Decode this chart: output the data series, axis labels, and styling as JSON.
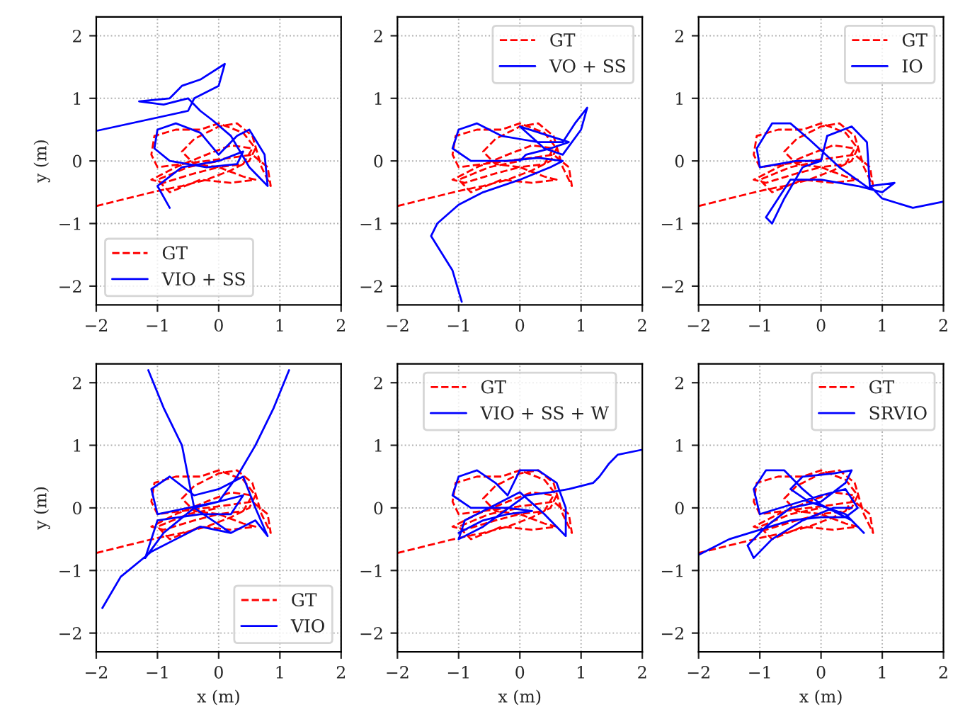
{
  "chart_data": [
    {
      "type": "line",
      "ylabel": "y (m)",
      "xlim": [
        -2,
        2
      ],
      "ylim": [
        -2.3,
        2.3
      ],
      "xticks": [
        -2,
        -1,
        0,
        1,
        2
      ],
      "yticks": [
        -2,
        -1,
        0,
        1,
        2
      ],
      "grid": true,
      "legend": "bottom left",
      "series": [
        {
          "name": "GT",
          "color": "#ff0000",
          "line_style": "dashed",
          "x": [
            -2,
            -1.5,
            -1.0,
            -0.6,
            -0.2,
            0.2,
            0.5,
            0.6,
            0.4,
            0.0,
            -0.3,
            -0.7,
            -1.05,
            -1.1,
            -1.0,
            -0.6,
            -0.2,
            0.2,
            0.55,
            0.8,
            0.85,
            0.7,
            0.55,
            0.3,
            0.0,
            -0.4,
            -0.6,
            -0.4,
            0.0,
            0.4,
            0.55,
            0.2,
            -0.2,
            -0.7,
            -1.1,
            -0.9,
            -0.4,
            0.0,
            0.4,
            0.6,
            0.2,
            -0.3,
            -0.8,
            -1.0,
            -0.5,
            0.0
          ],
          "values": [
            -0.72,
            -0.6,
            -0.48,
            -0.4,
            -0.3,
            -0.15,
            0.0,
            0.2,
            0.45,
            0.6,
            0.5,
            0.5,
            0.4,
            0.1,
            -0.1,
            -0.05,
            0.0,
            0.05,
            0.1,
            -0.1,
            -0.4,
            -0.1,
            0.4,
            0.6,
            0.55,
            0.35,
            0.15,
            -0.05,
            -0.1,
            -0.05,
            0.2,
            0.25,
            0.1,
            -0.1,
            -0.3,
            -0.35,
            -0.2,
            -0.1,
            -0.25,
            -0.3,
            -0.35,
            -0.3,
            -0.5,
            -0.3,
            -0.1,
            0.0
          ]
        },
        {
          "name": "VIO + SS",
          "color": "#0000ff",
          "line_style": "solid",
          "x": [
            -0.8,
            -1.0,
            -0.6,
            0.0,
            0.4,
            0.3,
            -0.2,
            -0.8,
            -1.05,
            -1.0,
            -0.7,
            -0.3,
            0.0,
            0.3,
            0.5,
            0.75,
            0.8,
            0.5,
            0.2,
            -0.1,
            -0.3,
            -0.5,
            -0.9,
            -1.3,
            -0.8,
            -0.6,
            -0.3,
            0.1,
            0.0,
            -0.4,
            -0.5,
            -2.0
          ],
          "values": [
            -0.75,
            -0.4,
            -0.1,
            0.0,
            0.15,
            -0.05,
            -0.1,
            0.0,
            0.2,
            0.5,
            0.6,
            0.45,
            0.1,
            0.4,
            0.5,
            0.1,
            -0.4,
            -0.1,
            0.4,
            0.65,
            0.8,
            1.0,
            0.9,
            0.95,
            1.0,
            1.2,
            1.3,
            1.55,
            1.2,
            1.0,
            0.8,
            0.48
          ]
        }
      ]
    },
    {
      "type": "line",
      "xlim": [
        -2,
        2
      ],
      "ylim": [
        -2.3,
        2.3
      ],
      "xticks": [
        -2,
        -1,
        0,
        1,
        2
      ],
      "yticks": [
        -2,
        -1,
        0,
        1,
        2
      ],
      "grid": true,
      "legend": "top right",
      "series": [
        {
          "name": "GT",
          "color": "#ff0000",
          "line_style": "dashed",
          "x": [
            -2,
            -1.5,
            -1.0,
            -0.6,
            -0.2,
            0.2,
            0.5,
            0.6,
            0.4,
            0.0,
            -0.3,
            -0.7,
            -1.05,
            -1.1,
            -1.0,
            -0.6,
            -0.2,
            0.2,
            0.55,
            0.8,
            0.85,
            0.7,
            0.55,
            0.3,
            0.0,
            -0.4,
            -0.6,
            -0.4,
            0.0,
            0.4,
            0.55,
            0.2,
            -0.2,
            -0.7,
            -1.1,
            -0.9,
            -0.4,
            0.0,
            0.4,
            0.6,
            0.2,
            -0.3,
            -0.8,
            -1.0,
            -0.5,
            0.0
          ],
          "values": [
            -0.72,
            -0.6,
            -0.48,
            -0.4,
            -0.3,
            -0.15,
            0.0,
            0.2,
            0.45,
            0.6,
            0.5,
            0.5,
            0.4,
            0.1,
            -0.1,
            -0.05,
            0.0,
            0.05,
            0.1,
            -0.1,
            -0.4,
            -0.1,
            0.4,
            0.6,
            0.55,
            0.35,
            0.15,
            -0.05,
            -0.1,
            -0.05,
            0.2,
            0.25,
            0.1,
            -0.1,
            -0.3,
            -0.35,
            -0.2,
            -0.1,
            -0.25,
            -0.3,
            -0.35,
            -0.3,
            -0.5,
            -0.3,
            -0.1,
            0.0
          ]
        },
        {
          "name": "VO + SS",
          "color": "#0000ff",
          "line_style": "solid",
          "x": [
            -0.95,
            -1.1,
            -1.45,
            -1.35,
            -1.0,
            -0.6,
            0.0,
            0.5,
            0.7,
            0.3,
            -0.2,
            -0.8,
            -1.1,
            -1.0,
            -0.7,
            -0.3,
            0.0,
            0.3,
            0.7,
            0.9,
            1.1,
            1.0,
            0.7,
            0.4,
            0.0,
            0.8,
            0.5,
            0.1,
            0.0
          ],
          "values": [
            -2.25,
            -1.75,
            -1.2,
            -1.0,
            -0.7,
            -0.5,
            -0.3,
            -0.1,
            0.0,
            0.05,
            0.0,
            0.0,
            0.2,
            0.5,
            0.6,
            0.4,
            0.35,
            0.3,
            0.3,
            0.6,
            0.85,
            0.5,
            0.1,
            0.2,
            0.55,
            0.3,
            0.2,
            0.1,
            0.0
          ]
        }
      ]
    },
    {
      "type": "line",
      "xlim": [
        -2,
        2
      ],
      "ylim": [
        -2.3,
        2.3
      ],
      "xticks": [
        -2,
        -1,
        0,
        1,
        2
      ],
      "yticks": [
        -2,
        -1,
        0,
        1,
        2
      ],
      "grid": true,
      "legend": "top right",
      "series": [
        {
          "name": "GT",
          "color": "#ff0000",
          "line_style": "dashed",
          "x": [
            -2,
            -1.5,
            -1.0,
            -0.6,
            -0.2,
            0.2,
            0.5,
            0.6,
            0.4,
            0.0,
            -0.3,
            -0.7,
            -1.05,
            -1.1,
            -1.0,
            -0.6,
            -0.2,
            0.2,
            0.55,
            0.8,
            0.85,
            0.7,
            0.55,
            0.3,
            0.0,
            -0.4,
            -0.6,
            -0.4,
            0.0,
            0.4,
            0.55,
            0.2,
            -0.2,
            -0.7,
            -1.1,
            -0.9,
            -0.4,
            0.0,
            0.4,
            0.6,
            0.2,
            -0.3,
            -0.8,
            -1.0,
            -0.5,
            0.0
          ],
          "values": [
            -0.72,
            -0.6,
            -0.48,
            -0.4,
            -0.3,
            -0.15,
            0.0,
            0.2,
            0.45,
            0.6,
            0.5,
            0.5,
            0.4,
            0.1,
            -0.1,
            -0.05,
            0.0,
            0.05,
            0.1,
            -0.1,
            -0.4,
            -0.1,
            0.4,
            0.6,
            0.55,
            0.35,
            0.15,
            -0.05,
            -0.1,
            -0.05,
            0.2,
            0.25,
            0.1,
            -0.1,
            -0.3,
            -0.35,
            -0.2,
            -0.1,
            -0.25,
            -0.3,
            -0.35,
            -0.3,
            -0.5,
            -0.3,
            -0.1,
            0.0
          ]
        },
        {
          "name": "IO",
          "color": "#0000ff",
          "line_style": "solid",
          "x": [
            2.0,
            1.5,
            1.0,
            0.8,
            1.2,
            1.0,
            0.6,
            0.0,
            -0.5,
            -0.9,
            -0.8,
            -0.6,
            -0.3,
            0.0,
            -0.4,
            -0.7,
            -1.0,
            -1.05,
            -0.8,
            -0.5,
            -0.2,
            0.3,
            0.8,
            0.75,
            0.5,
            0.1,
            0.0
          ],
          "values": [
            -0.65,
            -0.75,
            -0.6,
            -0.4,
            -0.35,
            -0.5,
            -0.4,
            -0.3,
            -0.3,
            -0.9,
            -1.0,
            -0.6,
            -0.1,
            0.0,
            0.0,
            -0.05,
            -0.1,
            0.2,
            0.6,
            0.6,
            0.35,
            -0.1,
            -0.45,
            0.3,
            0.55,
            0.4,
            0.0
          ]
        }
      ]
    },
    {
      "type": "line",
      "xlabel": "x (m)",
      "ylabel": "y (m)",
      "xlim": [
        -2,
        2
      ],
      "ylim": [
        -2.3,
        2.3
      ],
      "xticks": [
        -2,
        -1,
        0,
        1,
        2
      ],
      "yticks": [
        -2,
        -1,
        0,
        1,
        2
      ],
      "grid": true,
      "legend": "bottom right",
      "series": [
        {
          "name": "GT",
          "color": "#ff0000",
          "line_style": "dashed",
          "x": [
            -2,
            -1.5,
            -1.0,
            -0.6,
            -0.2,
            0.2,
            0.5,
            0.6,
            0.4,
            0.0,
            -0.3,
            -0.7,
            -1.05,
            -1.1,
            -1.0,
            -0.6,
            -0.2,
            0.2,
            0.55,
            0.8,
            0.85,
            0.7,
            0.55,
            0.3,
            0.0,
            -0.4,
            -0.6,
            -0.4,
            0.0,
            0.4,
            0.55,
            0.2,
            -0.2,
            -0.7,
            -1.1,
            -0.9,
            -0.4,
            0.0,
            0.4,
            0.6,
            0.2,
            -0.3,
            -0.8,
            -1.0,
            -0.5,
            0.0
          ],
          "values": [
            -0.72,
            -0.6,
            -0.48,
            -0.4,
            -0.3,
            -0.15,
            0.0,
            0.2,
            0.45,
            0.6,
            0.5,
            0.5,
            0.4,
            0.1,
            -0.1,
            -0.05,
            0.0,
            0.05,
            0.1,
            -0.1,
            -0.4,
            -0.1,
            0.4,
            0.6,
            0.55,
            0.35,
            0.15,
            -0.05,
            -0.1,
            -0.05,
            0.2,
            0.25,
            0.1,
            -0.1,
            -0.3,
            -0.35,
            -0.2,
            -0.1,
            -0.25,
            -0.3,
            -0.35,
            -0.3,
            -0.5,
            -0.3,
            -0.1,
            0.0
          ]
        },
        {
          "name": "VIO",
          "color": "#0000ff",
          "line_style": "solid",
          "x": [
            -1.15,
            -0.9,
            -0.6,
            -0.5,
            -0.4,
            0.0,
            0.4,
            0.2,
            -0.3,
            -1.0,
            -1.2,
            -0.9,
            -0.4,
            0.2,
            0.6,
            0.8,
            0.6,
            0.4,
            0.0,
            -0.4,
            -0.8,
            -1.1,
            -1.0,
            -0.5,
            0.0,
            0.3,
            0.6,
            0.9,
            1.15,
            null,
            -1.9,
            -1.6,
            -1.1,
            -0.7,
            -0.3,
            0.2
          ],
          "values": [
            2.2,
            1.6,
            1.0,
            0.5,
            0.0,
            0.1,
            0.2,
            -0.1,
            -0.1,
            -0.2,
            -0.8,
            -0.4,
            0.0,
            -0.4,
            -0.2,
            -0.45,
            0.0,
            0.5,
            0.3,
            0.2,
            0.5,
            0.3,
            -0.1,
            0.0,
            0.1,
            0.5,
            1.0,
            1.6,
            2.2,
            null,
            -1.6,
            -1.1,
            -0.7,
            -0.5,
            -0.3,
            -0.4
          ]
        }
      ]
    },
    {
      "type": "line",
      "xlabel": "x (m)",
      "xlim": [
        -2,
        2
      ],
      "ylim": [
        -2.3,
        2.3
      ],
      "xticks": [
        -2,
        -1,
        0,
        1,
        2
      ],
      "yticks": [
        -2,
        -1,
        0,
        1,
        2
      ],
      "grid": true,
      "legend": "top",
      "series": [
        {
          "name": "GT",
          "color": "#ff0000",
          "line_style": "dashed",
          "x": [
            -2,
            -1.5,
            -1.0,
            -0.6,
            -0.2,
            0.2,
            0.5,
            0.6,
            0.4,
            0.0,
            -0.3,
            -0.7,
            -1.05,
            -1.1,
            -1.0,
            -0.6,
            -0.2,
            0.2,
            0.55,
            0.8,
            0.85,
            0.7,
            0.55,
            0.3,
            0.0,
            -0.4,
            -0.6,
            -0.4,
            0.0,
            0.4,
            0.55,
            0.2,
            -0.2,
            -0.7,
            -1.1,
            -0.9,
            -0.4,
            0.0,
            0.4,
            0.6,
            0.2,
            -0.3,
            -0.8,
            -1.0,
            -0.5,
            0.0
          ],
          "values": [
            -0.72,
            -0.6,
            -0.48,
            -0.4,
            -0.3,
            -0.15,
            0.0,
            0.2,
            0.45,
            0.6,
            0.5,
            0.5,
            0.4,
            0.1,
            -0.1,
            -0.05,
            0.0,
            0.05,
            0.1,
            -0.1,
            -0.4,
            -0.1,
            0.4,
            0.6,
            0.55,
            0.35,
            0.15,
            -0.05,
            -0.1,
            -0.05,
            0.2,
            0.25,
            0.1,
            -0.1,
            -0.3,
            -0.35,
            -0.2,
            -0.1,
            -0.25,
            -0.3,
            -0.35,
            -0.3,
            -0.5,
            -0.3,
            -0.1,
            0.0
          ]
        },
        {
          "name": "VIO + SS + W",
          "color": "#0000ff",
          "line_style": "solid",
          "x": [
            -1.0,
            -0.6,
            -0.2,
            0.2,
            -0.2,
            -0.8,
            -1.1,
            -1.0,
            -0.7,
            -0.4,
            -0.2,
            0.0,
            0.3,
            0.6,
            0.75,
            0.75,
            0.4,
            0.0,
            -0.5,
            -0.9,
            -1.0,
            -0.6,
            0.1,
            0.5,
            0.8,
            1.2,
            1.3,
            1.45,
            1.6,
            2.0
          ],
          "values": [
            -0.4,
            -0.2,
            -0.1,
            -0.05,
            0.0,
            0.0,
            0.2,
            0.5,
            0.6,
            0.4,
            0.2,
            0.6,
            0.6,
            0.4,
            0.0,
            -0.45,
            -0.1,
            0.25,
            0.0,
            -0.2,
            -0.5,
            -0.3,
            0.2,
            0.25,
            0.3,
            0.4,
            0.5,
            0.7,
            0.85,
            0.93
          ]
        }
      ]
    },
    {
      "type": "line",
      "xlabel": "x (m)",
      "xlim": [
        -2,
        2
      ],
      "ylim": [
        -2.3,
        2.3
      ],
      "xticks": [
        -2,
        -1,
        0,
        1,
        2
      ],
      "yticks": [
        -2,
        -1,
        0,
        1,
        2
      ],
      "grid": true,
      "legend": "top right",
      "series": [
        {
          "name": "GT",
          "color": "#ff0000",
          "line_style": "dashed",
          "x": [
            -2,
            -1.5,
            -1.0,
            -0.6,
            -0.2,
            0.2,
            0.5,
            0.6,
            0.4,
            0.0,
            -0.3,
            -0.7,
            -1.05,
            -1.1,
            -1.0,
            -0.6,
            -0.2,
            0.2,
            0.55,
            0.8,
            0.85,
            0.7,
            0.55,
            0.3,
            0.0,
            -0.4,
            -0.6,
            -0.4,
            0.0,
            0.4,
            0.55,
            0.2,
            -0.2,
            -0.7,
            -1.1,
            -0.9,
            -0.4,
            0.0,
            0.4,
            0.6,
            0.2,
            -0.3,
            -0.8,
            -1.0,
            -0.5,
            0.0
          ],
          "values": [
            -0.72,
            -0.6,
            -0.48,
            -0.4,
            -0.3,
            -0.15,
            0.0,
            0.2,
            0.45,
            0.6,
            0.5,
            0.5,
            0.4,
            0.1,
            -0.1,
            -0.05,
            0.0,
            0.05,
            0.1,
            -0.1,
            -0.4,
            -0.1,
            0.4,
            0.6,
            0.55,
            0.35,
            0.15,
            -0.05,
            -0.1,
            -0.05,
            0.2,
            0.25,
            0.1,
            -0.1,
            -0.3,
            -0.35,
            -0.2,
            -0.1,
            -0.25,
            -0.3,
            -0.35,
            -0.3,
            -0.5,
            -0.3,
            -0.1,
            0.0
          ]
        },
        {
          "name": "SRVIO",
          "color": "#0000ff",
          "line_style": "solid",
          "x": [
            -2.0,
            -1.5,
            -1.0,
            -0.5,
            0.0,
            0.4,
            0.6,
            0.4,
            0.0,
            -0.5,
            -1.0,
            -1.1,
            -0.9,
            -0.6,
            -0.3,
            0.0,
            0.5,
            0.7,
            0.4,
            -0.2,
            -0.5,
            -0.3,
            0.2,
            0.5,
            0.4,
            0.0,
            -0.5,
            -0.9,
            -1.2,
            -1.1,
            -0.8,
            -0.3,
            0.2,
            0.5
          ],
          "values": [
            -0.75,
            -0.5,
            -0.35,
            -0.2,
            -0.15,
            -0.15,
            0.0,
            0.3,
            0.2,
            0.05,
            -0.1,
            0.3,
            0.6,
            0.6,
            0.3,
            0.05,
            -0.2,
            -0.4,
            -0.1,
            0.1,
            0.3,
            0.5,
            0.55,
            0.6,
            0.4,
            0.1,
            0.0,
            -0.3,
            -0.6,
            -0.8,
            -0.5,
            -0.2,
            0.0,
            0.0
          ]
        }
      ]
    }
  ]
}
